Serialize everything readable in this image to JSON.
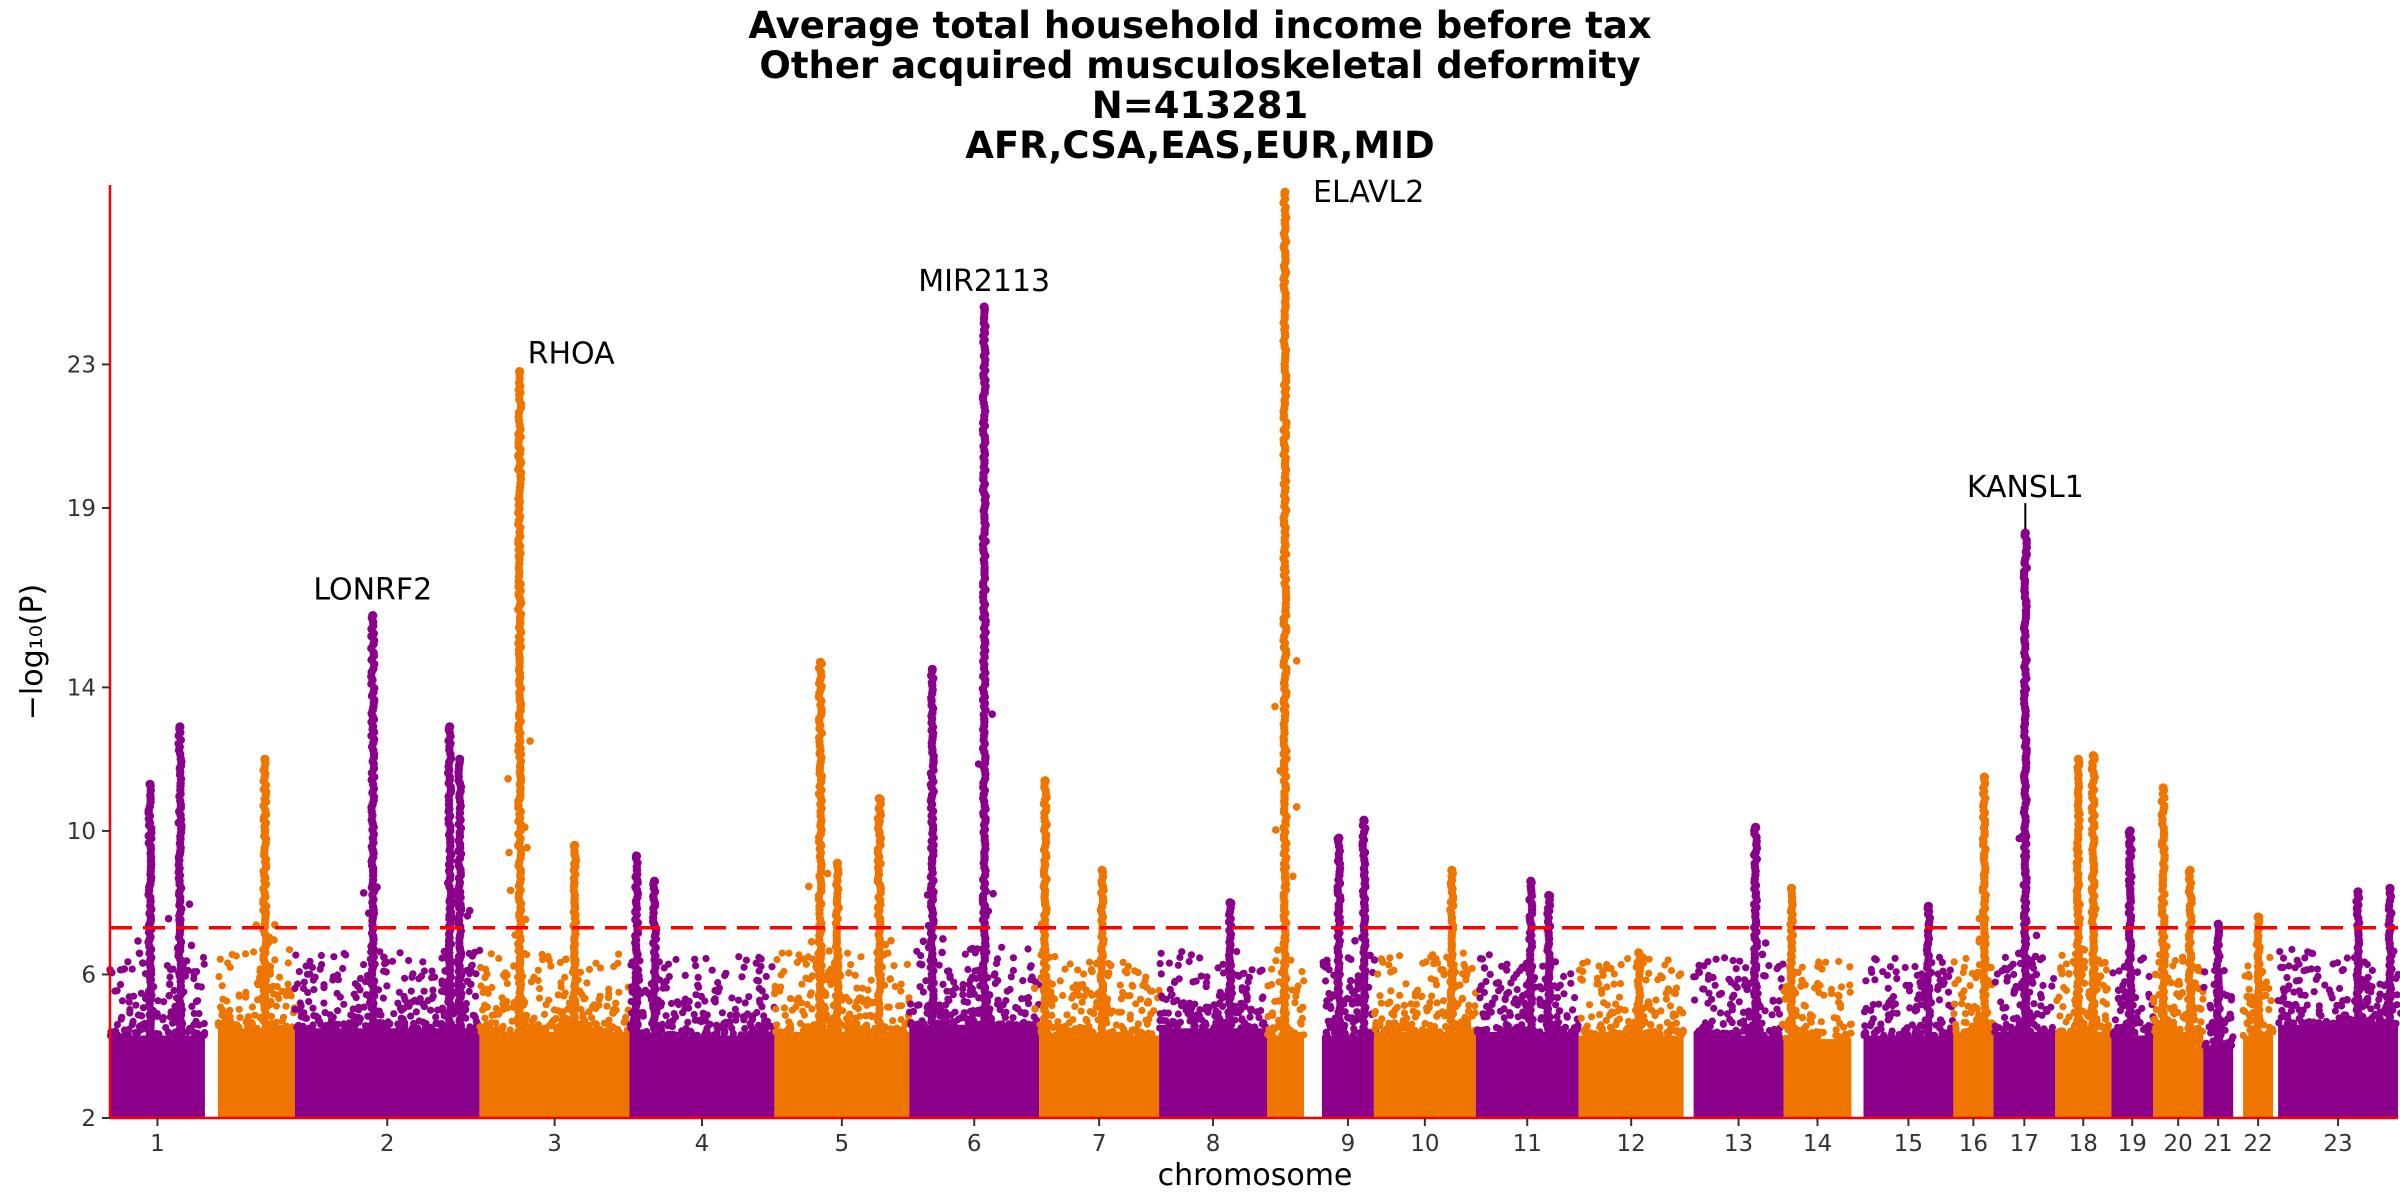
{
  "chart_data": {
    "type": "scatter",
    "title_lines": [
      "Average total household income before tax",
      "Other acquired musculoskeletal deformity",
      "N=413281",
      "AFR,CSA,EAS,EUR,MID"
    ],
    "xlabel": "chromosome",
    "ylabel": "−log₁₀(P)",
    "ylim": [
      2,
      28
    ],
    "y_ticks": [
      2,
      6,
      10,
      14,
      19,
      23
    ],
    "significance_threshold": 7.3,
    "colors": {
      "odd": "#8b008b",
      "even": "#ee7600",
      "threshold": "#ff0000",
      "axis": "#ff0000"
    },
    "chromosomes": [
      {
        "label": "1",
        "start": 0,
        "end": 95,
        "base": 4.3,
        "peaks": [
          {
            "pos": 40,
            "y": 11.3
          },
          {
            "pos": 70,
            "y": 12.9
          }
        ]
      },
      {
        "label": "",
        "start": 108,
        "end": 185,
        "base": 4.5,
        "peaks": [
          {
            "pos": 155,
            "y": 12.0
          }
        ]
      },
      {
        "label": "2",
        "start": 185,
        "end": 370,
        "base": 4.5,
        "peaks": [
          {
            "pos": 263,
            "y": 16.0
          },
          {
            "pos": 340,
            "y": 12.9
          },
          {
            "pos": 350,
            "y": 12.0
          }
        ]
      },
      {
        "label": "3",
        "start": 370,
        "end": 520,
        "base": 4.4,
        "peaks": [
          {
            "pos": 410,
            "y": 22.8
          },
          {
            "pos": 465,
            "y": 9.6
          }
        ]
      },
      {
        "label": "4",
        "start": 520,
        "end": 665,
        "base": 4.3,
        "peaks": [
          {
            "pos": 527,
            "y": 9.3
          },
          {
            "pos": 545,
            "y": 8.6
          }
        ]
      },
      {
        "label": "5",
        "start": 665,
        "end": 800,
        "base": 4.4,
        "peaks": [
          {
            "pos": 711,
            "y": 14.7
          },
          {
            "pos": 728,
            "y": 9.1
          },
          {
            "pos": 770,
            "y": 10.9
          }
        ]
      },
      {
        "label": "6",
        "start": 800,
        "end": 930,
        "base": 4.6,
        "peaks": [
          {
            "pos": 823,
            "y": 14.5
          },
          {
            "pos": 875,
            "y": 24.6
          }
        ]
      },
      {
        "label": "7",
        "start": 930,
        "end": 1050,
        "base": 4.3,
        "peaks": [
          {
            "pos": 936,
            "y": 11.4
          },
          {
            "pos": 993,
            "y": 8.9
          }
        ]
      },
      {
        "label": "8",
        "start": 1050,
        "end": 1158,
        "base": 4.5,
        "peaks": [
          {
            "pos": 1121,
            "y": 8.0
          }
        ]
      },
      {
        "label": "",
        "start": 1158,
        "end": 1195,
        "base": 4.3,
        "peaks": [
          {
            "pos": 1176,
            "y": 27.8
          }
        ]
      },
      {
        "label": "9",
        "start": 1213,
        "end": 1265,
        "base": 4.3,
        "peaks": [
          {
            "pos": 1230,
            "y": 9.8
          },
          {
            "pos": 1255,
            "y": 10.3
          }
        ]
      },
      {
        "label": "10",
        "start": 1265,
        "end": 1367,
        "base": 4.4,
        "peaks": [
          {
            "pos": 1343,
            "y": 8.9
          }
        ]
      },
      {
        "label": "11",
        "start": 1367,
        "end": 1470,
        "base": 4.4,
        "peaks": [
          {
            "pos": 1422,
            "y": 8.6
          },
          {
            "pos": 1440,
            "y": 8.2
          }
        ]
      },
      {
        "label": "12",
        "start": 1470,
        "end": 1575,
        "base": 4.3,
        "peaks": [
          {
            "pos": 1530,
            "y": 6.6
          }
        ]
      },
      {
        "label": "13",
        "start": 1585,
        "end": 1675,
        "base": 4.3,
        "peaks": [
          {
            "pos": 1647,
            "y": 10.1
          }
        ]
      },
      {
        "label": "14",
        "start": 1675,
        "end": 1743,
        "base": 4.2,
        "peaks": [
          {
            "pos": 1683,
            "y": 8.4
          }
        ]
      },
      {
        "label": "15",
        "start": 1755,
        "end": 1845,
        "base": 4.3,
        "peaks": [
          {
            "pos": 1820,
            "y": 7.9
          }
        ]
      },
      {
        "label": "16",
        "start": 1845,
        "end": 1885,
        "base": 4.4,
        "peaks": [
          {
            "pos": 1876,
            "y": 11.5
          }
        ]
      },
      {
        "label": "17",
        "start": 1885,
        "end": 1947,
        "base": 4.4,
        "peaks": [
          {
            "pos": 1917,
            "y": 18.3
          }
        ]
      },
      {
        "label": "18",
        "start": 1947,
        "end": 2003,
        "base": 4.4,
        "peaks": [
          {
            "pos": 1970,
            "y": 12.0
          },
          {
            "pos": 1985,
            "y": 12.1
          }
        ]
      },
      {
        "label": "19",
        "start": 2003,
        "end": 2045,
        "base": 4.3,
        "peaks": [
          {
            "pos": 2022,
            "y": 10.0
          }
        ]
      },
      {
        "label": "20",
        "start": 2045,
        "end": 2095,
        "base": 4.4,
        "peaks": [
          {
            "pos": 2055,
            "y": 11.2
          },
          {
            "pos": 2082,
            "y": 8.9
          }
        ]
      },
      {
        "label": "21",
        "start": 2095,
        "end": 2125,
        "base": 4.0,
        "peaks": [
          {
            "pos": 2110,
            "y": 7.4
          }
        ]
      },
      {
        "label": "22",
        "start": 2135,
        "end": 2165,
        "base": 4.3,
        "peaks": [
          {
            "pos": 2150,
            "y": 7.6
          }
        ]
      },
      {
        "label": "23",
        "start": 2170,
        "end": 2290,
        "base": 4.6,
        "peaks": [
          {
            "pos": 2250,
            "y": 8.3
          },
          {
            "pos": 2282,
            "y": 8.4
          }
        ]
      }
    ],
    "annotations": [
      {
        "text": "LONRF2",
        "pos": 263,
        "y": 16.0
      },
      {
        "text": "RHOA",
        "pos": 410,
        "y": 22.8
      },
      {
        "text": "MIR2113",
        "pos": 875,
        "y": 24.6
      },
      {
        "text": "ELAVL2",
        "pos": 1176,
        "y": 27.8
      },
      {
        "text": "KANSL1",
        "pos": 1917,
        "y": 18.3
      }
    ]
  }
}
